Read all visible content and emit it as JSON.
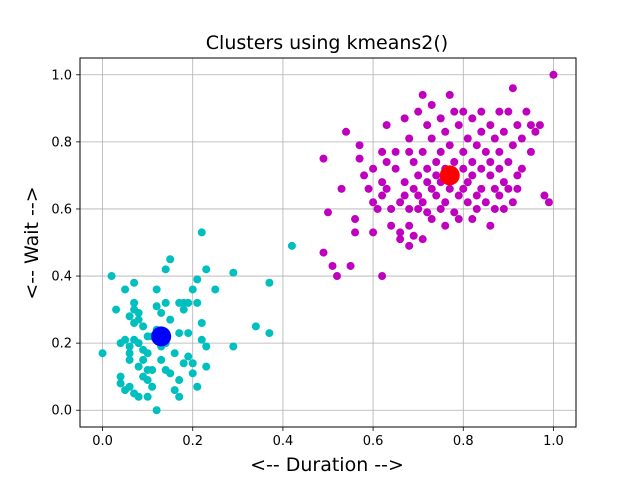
{
  "chart_data": {
    "type": "scatter",
    "title": "Clusters using kmeans2()",
    "xlabel": "<-- Duration -->",
    "ylabel": "<-- Wait -->",
    "xlim": [
      -0.05,
      1.05
    ],
    "ylim": [
      -0.05,
      1.05
    ],
    "xticks": [
      "0.0",
      "0.2",
      "0.4",
      "0.6",
      "0.8",
      "1.0"
    ],
    "yticks": [
      "0.0",
      "0.2",
      "0.4",
      "0.6",
      "0.8",
      "1.0"
    ],
    "grid": true,
    "series": [
      {
        "color": "#00bfbf",
        "points": [
          [
            0.0,
            0.17
          ],
          [
            0.02,
            0.4
          ],
          [
            0.03,
            0.3
          ],
          [
            0.04,
            0.2
          ],
          [
            0.04,
            0.08
          ],
          [
            0.04,
            0.1
          ],
          [
            0.05,
            0.36
          ],
          [
            0.05,
            0.21
          ],
          [
            0.05,
            0.06
          ],
          [
            0.06,
            0.28
          ],
          [
            0.06,
            0.19
          ],
          [
            0.06,
            0.17
          ],
          [
            0.06,
            0.15
          ],
          [
            0.06,
            0.07
          ],
          [
            0.07,
            0.38
          ],
          [
            0.07,
            0.32
          ],
          [
            0.07,
            0.3
          ],
          [
            0.07,
            0.26
          ],
          [
            0.07,
            0.21
          ],
          [
            0.07,
            0.05
          ],
          [
            0.08,
            0.29
          ],
          [
            0.08,
            0.27
          ],
          [
            0.08,
            0.2
          ],
          [
            0.08,
            0.13
          ],
          [
            0.08,
            0.04
          ],
          [
            0.09,
            0.25
          ],
          [
            0.09,
            0.18
          ],
          [
            0.09,
            0.15
          ],
          [
            0.09,
            0.1
          ],
          [
            0.1,
            0.22
          ],
          [
            0.1,
            0.17
          ],
          [
            0.1,
            0.12
          ],
          [
            0.1,
            0.09
          ],
          [
            0.1,
            0.04
          ],
          [
            0.11,
            0.22
          ],
          [
            0.11,
            0.12
          ],
          [
            0.11,
            0.07
          ],
          [
            0.12,
            0.36
          ],
          [
            0.12,
            0.31
          ],
          [
            0.12,
            0.24
          ],
          [
            0.12,
            0.0
          ],
          [
            0.13,
            0.29
          ],
          [
            0.13,
            0.19
          ],
          [
            0.13,
            0.15
          ],
          [
            0.14,
            0.42
          ],
          [
            0.14,
            0.32
          ],
          [
            0.14,
            0.2
          ],
          [
            0.14,
            0.12
          ],
          [
            0.15,
            0.45
          ],
          [
            0.15,
            0.27
          ],
          [
            0.15,
            0.11
          ],
          [
            0.16,
            0.17
          ],
          [
            0.16,
            0.06
          ],
          [
            0.17,
            0.32
          ],
          [
            0.17,
            0.23
          ],
          [
            0.17,
            0.09
          ],
          [
            0.17,
            0.04
          ],
          [
            0.18,
            0.32
          ],
          [
            0.18,
            0.3
          ],
          [
            0.18,
            0.14
          ],
          [
            0.19,
            0.32
          ],
          [
            0.19,
            0.23
          ],
          [
            0.19,
            0.16
          ],
          [
            0.2,
            0.36
          ],
          [
            0.2,
            0.14
          ],
          [
            0.2,
            0.11
          ],
          [
            0.21,
            0.39
          ],
          [
            0.21,
            0.32
          ],
          [
            0.21,
            0.07
          ],
          [
            0.22,
            0.53
          ],
          [
            0.22,
            0.26
          ],
          [
            0.22,
            0.21
          ],
          [
            0.23,
            0.42
          ],
          [
            0.23,
            0.19
          ],
          [
            0.23,
            0.13
          ],
          [
            0.25,
            0.36
          ],
          [
            0.29,
            0.41
          ],
          [
            0.29,
            0.19
          ],
          [
            0.34,
            0.25
          ],
          [
            0.37,
            0.38
          ],
          [
            0.37,
            0.23
          ],
          [
            0.42,
            0.49
          ]
        ]
      },
      {
        "color": "#bf00bf",
        "points": [
          [
            0.49,
            0.75
          ],
          [
            0.49,
            0.47
          ],
          [
            0.5,
            0.59
          ],
          [
            0.51,
            0.43
          ],
          [
            0.52,
            0.4
          ],
          [
            0.53,
            0.66
          ],
          [
            0.54,
            0.83
          ],
          [
            0.55,
            0.43
          ],
          [
            0.56,
            0.57
          ],
          [
            0.56,
            0.53
          ],
          [
            0.57,
            0.79
          ],
          [
            0.57,
            0.75
          ],
          [
            0.58,
            0.7
          ],
          [
            0.59,
            0.66
          ],
          [
            0.6,
            0.72
          ],
          [
            0.6,
            0.62
          ],
          [
            0.6,
            0.53
          ],
          [
            0.61,
            0.6
          ],
          [
            0.62,
            0.77
          ],
          [
            0.62,
            0.68
          ],
          [
            0.62,
            0.64
          ],
          [
            0.62,
            0.4
          ],
          [
            0.63,
            0.85
          ],
          [
            0.63,
            0.74
          ],
          [
            0.63,
            0.66
          ],
          [
            0.64,
            0.6
          ],
          [
            0.64,
            0.55
          ],
          [
            0.65,
            0.77
          ],
          [
            0.65,
            0.72
          ],
          [
            0.66,
            0.62
          ],
          [
            0.66,
            0.53
          ],
          [
            0.66,
            0.51
          ],
          [
            0.67,
            0.87
          ],
          [
            0.67,
            0.68
          ],
          [
            0.67,
            0.64
          ],
          [
            0.68,
            0.81
          ],
          [
            0.68,
            0.77
          ],
          [
            0.68,
            0.6
          ],
          [
            0.68,
            0.55
          ],
          [
            0.68,
            0.49
          ],
          [
            0.69,
            0.74
          ],
          [
            0.69,
            0.66
          ],
          [
            0.69,
            0.52
          ],
          [
            0.7,
            0.89
          ],
          [
            0.7,
            0.7
          ],
          [
            0.7,
            0.64
          ],
          [
            0.7,
            0.6
          ],
          [
            0.71,
            0.94
          ],
          [
            0.71,
            0.77
          ],
          [
            0.71,
            0.62
          ],
          [
            0.71,
            0.51
          ],
          [
            0.72,
            0.85
          ],
          [
            0.72,
            0.72
          ],
          [
            0.72,
            0.68
          ],
          [
            0.72,
            0.59
          ],
          [
            0.73,
            0.91
          ],
          [
            0.73,
            0.81
          ],
          [
            0.73,
            0.66
          ],
          [
            0.73,
            0.57
          ],
          [
            0.74,
            0.74
          ],
          [
            0.74,
            0.7
          ],
          [
            0.74,
            0.64
          ],
          [
            0.75,
            0.87
          ],
          [
            0.75,
            0.77
          ],
          [
            0.75,
            0.68
          ],
          [
            0.75,
            0.6
          ],
          [
            0.76,
            0.83
          ],
          [
            0.76,
            0.72
          ],
          [
            0.76,
            0.62
          ],
          [
            0.76,
            0.55
          ],
          [
            0.77,
            0.94
          ],
          [
            0.77,
            0.79
          ],
          [
            0.77,
            0.66
          ],
          [
            0.78,
            0.89
          ],
          [
            0.78,
            0.74
          ],
          [
            0.78,
            0.7
          ],
          [
            0.78,
            0.59
          ],
          [
            0.79,
            0.85
          ],
          [
            0.79,
            0.64
          ],
          [
            0.79,
            0.57
          ],
          [
            0.8,
            0.89
          ],
          [
            0.8,
            0.77
          ],
          [
            0.8,
            0.72
          ],
          [
            0.8,
            0.66
          ],
          [
            0.81,
            0.81
          ],
          [
            0.81,
            0.68
          ],
          [
            0.81,
            0.62
          ],
          [
            0.82,
            0.87
          ],
          [
            0.82,
            0.74
          ],
          [
            0.82,
            0.7
          ],
          [
            0.82,
            0.57
          ],
          [
            0.83,
            0.79
          ],
          [
            0.83,
            0.64
          ],
          [
            0.83,
            0.6
          ],
          [
            0.84,
            0.89
          ],
          [
            0.84,
            0.83
          ],
          [
            0.84,
            0.72
          ],
          [
            0.84,
            0.66
          ],
          [
            0.85,
            0.77
          ],
          [
            0.85,
            0.62
          ],
          [
            0.86,
            0.85
          ],
          [
            0.86,
            0.74
          ],
          [
            0.86,
            0.7
          ],
          [
            0.86,
            0.55
          ],
          [
            0.87,
            0.81
          ],
          [
            0.87,
            0.66
          ],
          [
            0.87,
            0.6
          ],
          [
            0.88,
            0.89
          ],
          [
            0.88,
            0.77
          ],
          [
            0.88,
            0.72
          ],
          [
            0.88,
            0.64
          ],
          [
            0.89,
            0.83
          ],
          [
            0.89,
            0.68
          ],
          [
            0.89,
            0.6
          ],
          [
            0.9,
            0.89
          ],
          [
            0.9,
            0.74
          ],
          [
            0.9,
            0.66
          ],
          [
            0.91,
            0.96
          ],
          [
            0.91,
            0.79
          ],
          [
            0.91,
            0.62
          ],
          [
            0.92,
            0.85
          ],
          [
            0.92,
            0.7
          ],
          [
            0.92,
            0.66
          ],
          [
            0.93,
            0.81
          ],
          [
            0.93,
            0.72
          ],
          [
            0.94,
            0.89
          ],
          [
            0.95,
            0.85
          ],
          [
            0.95,
            0.77
          ],
          [
            0.96,
            0.83
          ],
          [
            0.97,
            0.85
          ],
          [
            0.98,
            0.64
          ],
          [
            0.99,
            0.62
          ],
          [
            1.0,
            1.0
          ]
        ]
      }
    ],
    "centroids": [
      {
        "x": 0.13,
        "y": 0.22,
        "color": "#0000ff"
      },
      {
        "x": 0.77,
        "y": 0.7,
        "color": "#ff0000"
      }
    ]
  }
}
